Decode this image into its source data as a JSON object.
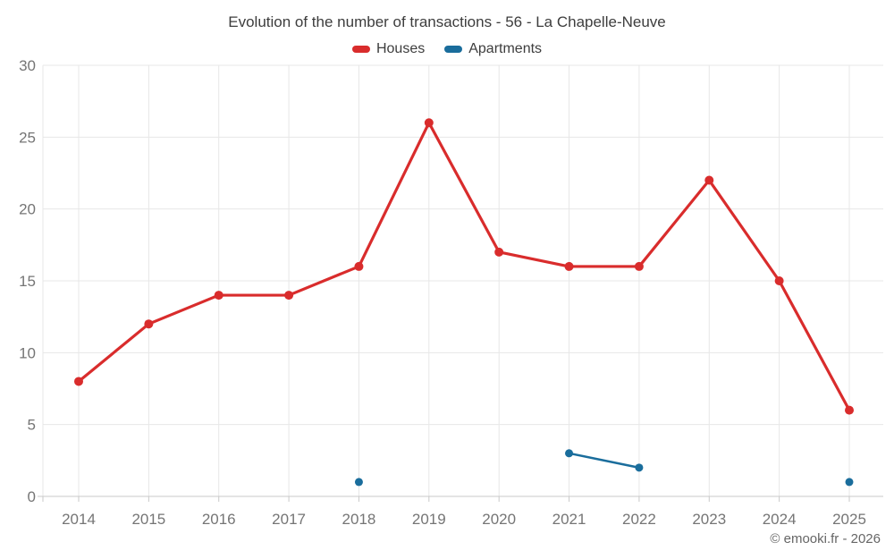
{
  "title": "Evolution of the number of transactions - 56 - La Chapelle-Neuve",
  "footer": "© emooki.fr - 2026",
  "colors": {
    "houses": "#d92c2c",
    "apartments": "#1a6d9c",
    "grid": "#e7e7e7",
    "axis": "#c9c9c9",
    "tick_label": "#757575",
    "title_text": "#3d3d3d",
    "footer_text": "#666666",
    "background": "#ffffff"
  },
  "chart_data": {
    "type": "line",
    "title": "Evolution of the number of transactions - 56 - La Chapelle-Neuve",
    "categories": [
      "2014",
      "2015",
      "2016",
      "2017",
      "2018",
      "2019",
      "2020",
      "2021",
      "2022",
      "2023",
      "2024",
      "2025"
    ],
    "series": [
      {
        "name": "Houses",
        "color": "#d92c2c",
        "values": [
          8,
          12,
          14,
          14,
          16,
          26,
          17,
          16,
          16,
          22,
          15,
          6
        ]
      },
      {
        "name": "Apartments",
        "color": "#1a6d9c",
        "values": [
          null,
          null,
          null,
          null,
          1,
          null,
          null,
          3,
          2,
          null,
          null,
          1
        ]
      }
    ],
    "xlabel": "",
    "ylabel": "",
    "ylim": [
      0,
      30
    ],
    "yticks": [
      0,
      5,
      10,
      15,
      20,
      25,
      30
    ],
    "grid": true,
    "legend_position": "top"
  }
}
